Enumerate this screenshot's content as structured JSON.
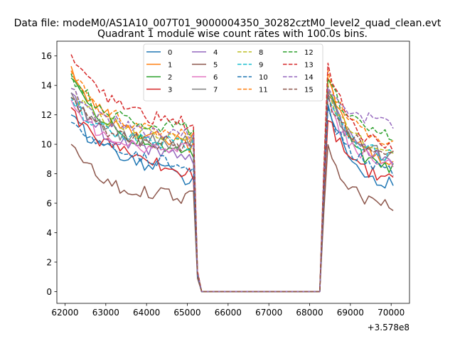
{
  "chart_data": {
    "type": "line",
    "suptitle": "Data file: modeM0/AS1A10_007T01_9000004350_30282cztM0_level2_quad_clean.evt",
    "title": "Quadrant 1 module wise count rates with 100.0s bins.",
    "xlabel": "",
    "ylabel": "",
    "x_offset_label": "+3.578e8",
    "xlim": [
      61800,
      70450
    ],
    "ylim": [
      -0.8,
      17.0
    ],
    "x_ticks": [
      62000,
      63000,
      64000,
      65000,
      66000,
      67000,
      68000,
      69000,
      70000
    ],
    "x_tick_labels": [
      "62000",
      "63000",
      "64000",
      "65000",
      "66000",
      "67000",
      "68000",
      "69000",
      "70000"
    ],
    "y_ticks": [
      0,
      2,
      4,
      6,
      8,
      10,
      12,
      14,
      16
    ],
    "y_tick_labels": [
      "0",
      "2",
      "4",
      "6",
      "8",
      "10",
      "12",
      "14",
      "16"
    ],
    "grid": false,
    "legend_location": "upper-center",
    "segment_breakpoints_x": [
      62150,
      65150,
      65250,
      65350,
      68250,
      68350,
      68450,
      70050
    ],
    "series": [
      {
        "name": "0",
        "color": "#1f77b4",
        "dash": "solid",
        "values": [
          12.0,
          8.8,
          7.5,
          1.0,
          0,
          0,
          13.0,
          7.0
        ]
      },
      {
        "name": "1",
        "color": "#ff7f0e",
        "dash": "solid",
        "values": [
          15.3,
          10.5,
          9.8,
          1.3,
          0,
          0,
          14.5,
          8.5
        ]
      },
      {
        "name": "2",
        "color": "#2ca02c",
        "dash": "solid",
        "values": [
          14.5,
          10.0,
          9.2,
          1.2,
          0,
          0,
          14.0,
          8.0
        ]
      },
      {
        "name": "3",
        "color": "#d62728",
        "dash": "solid",
        "values": [
          12.5,
          9.0,
          7.8,
          1.1,
          0,
          0,
          12.0,
          7.4
        ]
      },
      {
        "name": "4",
        "color": "#9467bd",
        "dash": "solid",
        "values": [
          13.5,
          9.5,
          9.0,
          1.2,
          0,
          0,
          13.5,
          8.8
        ]
      },
      {
        "name": "5",
        "color": "#8c564b",
        "dash": "solid",
        "values": [
          10.0,
          6.5,
          6.3,
          0.9,
          0,
          0,
          10.0,
          5.5
        ]
      },
      {
        "name": "6",
        "color": "#e377c2",
        "dash": "solid",
        "values": [
          13.0,
          9.5,
          9.5,
          1.2,
          0,
          0,
          13.0,
          8.5
        ]
      },
      {
        "name": "7",
        "color": "#7f7f7f",
        "dash": "solid",
        "values": [
          13.5,
          10.0,
          10.0,
          1.2,
          0,
          0,
          13.5,
          9.0
        ]
      },
      {
        "name": "8",
        "color": "#bcbd22",
        "dash": "dashed",
        "values": [
          13.8,
          10.5,
          10.3,
          1.3,
          0,
          0,
          13.8,
          9.3
        ]
      },
      {
        "name": "9",
        "color": "#17becf",
        "dash": "dashed",
        "values": [
          13.2,
          10.0,
          10.0,
          1.2,
          0,
          0,
          13.2,
          9.0
        ]
      },
      {
        "name": "10",
        "color": "#1f77b4",
        "dash": "dashed",
        "values": [
          11.5,
          9.0,
          8.5,
          1.1,
          0,
          0,
          12.5,
          8.0
        ]
      },
      {
        "name": "11",
        "color": "#ff7f0e",
        "dash": "dashed",
        "values": [
          15.0,
          11.0,
          10.5,
          1.3,
          0,
          0,
          14.8,
          9.8
        ]
      },
      {
        "name": "12",
        "color": "#2ca02c",
        "dash": "dashed",
        "values": [
          14.8,
          11.0,
          11.0,
          1.3,
          0,
          0,
          14.8,
          10.3
        ]
      },
      {
        "name": "13",
        "color": "#d62728",
        "dash": "dashed",
        "values": [
          16.1,
          11.8,
          11.2,
          1.4,
          0,
          0,
          15.5,
          9.5
        ]
      },
      {
        "name": "14",
        "color": "#9467bd",
        "dash": "dashed",
        "values": [
          13.8,
          10.8,
          10.5,
          1.3,
          0,
          0,
          14.0,
          11.3
        ]
      },
      {
        "name": "15",
        "color": "#8c564b",
        "dash": "dashed",
        "values": [
          13.2,
          10.0,
          9.9,
          1.2,
          0,
          0,
          13.3,
          9.1
        ]
      }
    ]
  }
}
